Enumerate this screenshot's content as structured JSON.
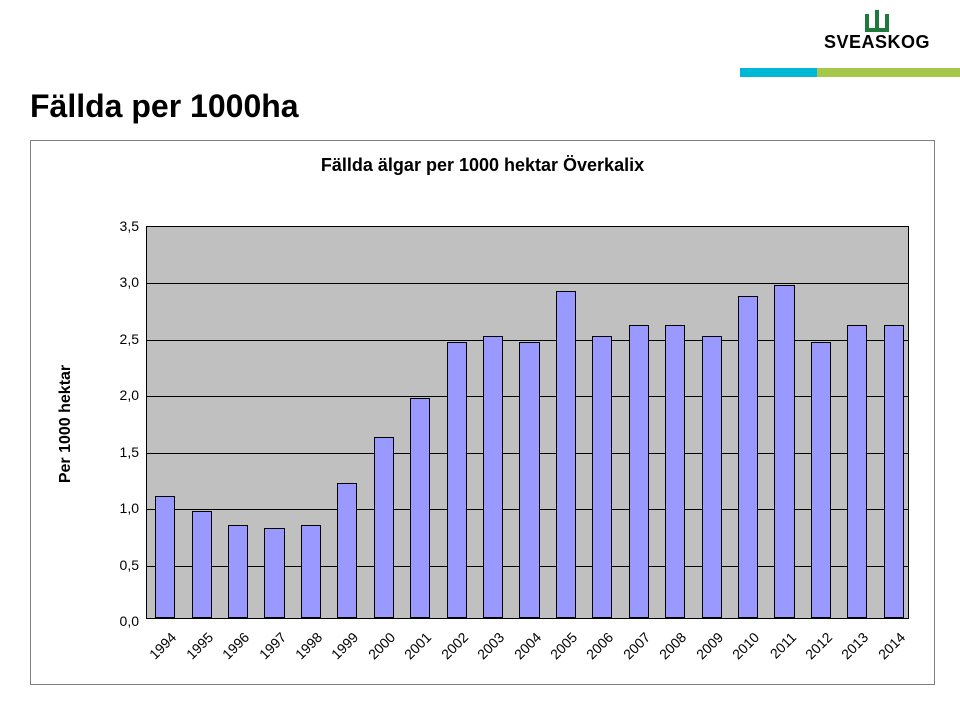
{
  "logo": {
    "text": "SVEASKOG",
    "mark_color": "#1e7a3a",
    "word_color": "#000000",
    "word_fontsize": 18,
    "accent_colors": [
      "#00b7d8",
      "#a6c84a"
    ]
  },
  "page_title": {
    "text": "Fällda per 1000ha",
    "fontsize": 32,
    "color": "#000000"
  },
  "chart": {
    "type": "bar",
    "title": "Fällda älgar per 1000 hektar Överkalix",
    "title_fontsize": 18,
    "y_axis_title": "Per 1000 hektar",
    "axis_title_fontsize": 16,
    "tick_fontsize": 14,
    "plot_bg": "#c0c0c0",
    "grid_color": "#000000",
    "axis_color": "#000000",
    "bar_color": "#9999ff",
    "bar_border_color": "#000000",
    "bar_width_ratio": 0.55,
    "ylim": [
      0.0,
      3.5
    ],
    "ytick_step": 0.5,
    "ytick_labels": [
      "0,0",
      "0,5",
      "1,0",
      "1,5",
      "2,0",
      "2,5",
      "3,0",
      "3,5"
    ],
    "categories": [
      "1994",
      "1995",
      "1996",
      "1997",
      "1998",
      "1999",
      "2000",
      "2001",
      "2002",
      "2003",
      "2004",
      "2005",
      "2006",
      "2007",
      "2008",
      "2009",
      "2010",
      "2011",
      "2012",
      "2013",
      "2014"
    ],
    "values": [
      1.08,
      0.95,
      0.82,
      0.8,
      0.82,
      1.2,
      1.6,
      1.95,
      2.45,
      2.5,
      2.45,
      2.9,
      2.5,
      2.6,
      2.6,
      2.5,
      2.85,
      2.95,
      2.45,
      2.6,
      2.6
    ]
  }
}
